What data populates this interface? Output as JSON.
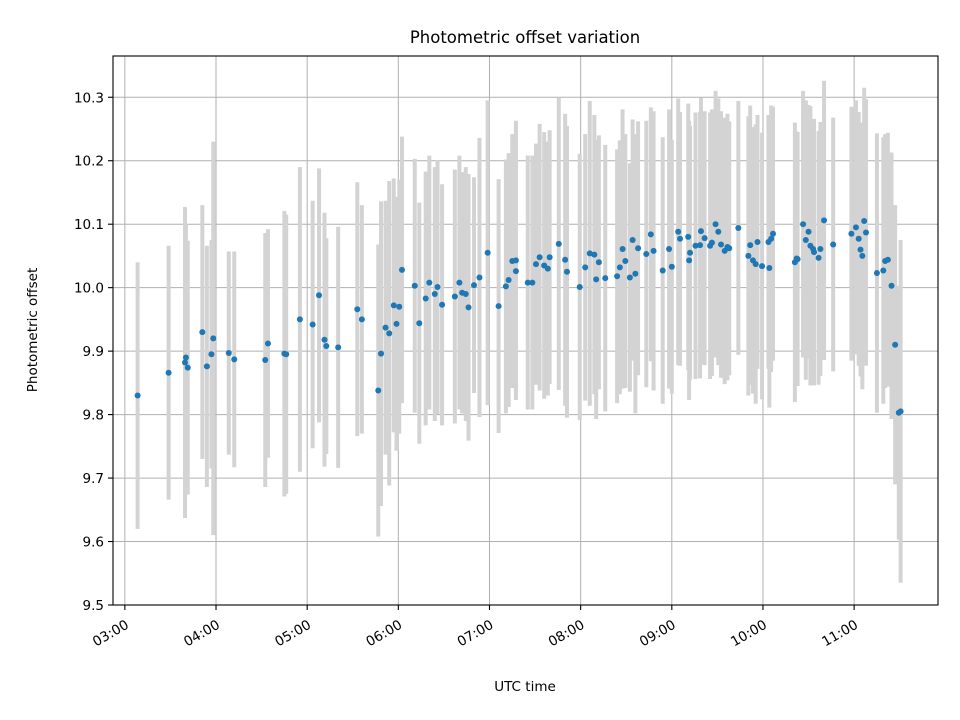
{
  "chart_data": {
    "type": "scatter",
    "title": "Photometric offset variation",
    "xlabel": "UTC time",
    "ylabel": "Photometric offset",
    "x_unit": "hours UTC",
    "xlim": [
      2.87,
      11.92
    ],
    "ylim": [
      9.5,
      10.365
    ],
    "x_ticks": [
      {
        "value": 3,
        "label": "03:00"
      },
      {
        "value": 4,
        "label": "04:00"
      },
      {
        "value": 5,
        "label": "05:00"
      },
      {
        "value": 6,
        "label": "06:00"
      },
      {
        "value": 7,
        "label": "07:00"
      },
      {
        "value": 8,
        "label": "08:00"
      },
      {
        "value": 9,
        "label": "09:00"
      },
      {
        "value": 10,
        "label": "10:00"
      },
      {
        "value": 11,
        "label": "11:00"
      }
    ],
    "y_ticks": [
      {
        "value": 9.5,
        "label": "9.5"
      },
      {
        "value": 9.6,
        "label": "9.6"
      },
      {
        "value": 9.7,
        "label": "9.7"
      },
      {
        "value": 9.8,
        "label": "9.8"
      },
      {
        "value": 9.9,
        "label": "9.9"
      },
      {
        "value": 10.0,
        "label": "10.0"
      },
      {
        "value": 10.1,
        "label": "10.1"
      },
      {
        "value": 10.2,
        "label": "10.2"
      },
      {
        "value": 10.3,
        "label": "10.3"
      }
    ],
    "grid": true,
    "legend": "none",
    "colors": {
      "points": "#1f77b4",
      "error_bars": "#d3d3d3"
    },
    "series": [
      {
        "points": [
          [
            3.14,
            9.83,
            0.21
          ],
          [
            3.48,
            9.866,
            0.2
          ],
          [
            3.66,
            9.882,
            0.245
          ],
          [
            3.67,
            9.89,
            0.21
          ],
          [
            3.69,
            9.874,
            0.2
          ],
          [
            3.85,
            9.93,
            0.2
          ],
          [
            3.9,
            9.876,
            0.19
          ],
          [
            3.95,
            9.895,
            0.18
          ],
          [
            3.97,
            9.92,
            0.31
          ],
          [
            4.14,
            9.897,
            0.16
          ],
          [
            4.2,
            9.887,
            0.17
          ],
          [
            4.54,
            9.886,
            0.2
          ],
          [
            4.57,
            9.912,
            0.18
          ],
          [
            4.75,
            9.896,
            0.225
          ],
          [
            4.77,
            9.895,
            0.22
          ],
          [
            4.92,
            9.95,
            0.24
          ],
          [
            5.06,
            9.942,
            0.195
          ],
          [
            5.13,
            9.988,
            0.2
          ],
          [
            5.19,
            9.918,
            0.2
          ],
          [
            5.21,
            9.908,
            0.17
          ],
          [
            5.34,
            9.906,
            0.19
          ],
          [
            5.55,
            9.966,
            0.2
          ],
          [
            5.6,
            9.95,
            0.18
          ],
          [
            5.78,
            9.838,
            0.23
          ],
          [
            5.81,
            9.896,
            0.24
          ],
          [
            5.86,
            9.937,
            0.2
          ],
          [
            5.9,
            9.928,
            0.24
          ],
          [
            5.95,
            9.972,
            0.2
          ],
          [
            5.98,
            9.943,
            0.2
          ],
          [
            6.01,
            9.97,
            0.2
          ],
          [
            6.04,
            10.028,
            0.21
          ],
          [
            6.18,
            10.003,
            0.2
          ],
          [
            6.23,
            9.944,
            0.19
          ],
          [
            6.3,
            9.983,
            0.2
          ],
          [
            6.34,
            10.008,
            0.2
          ],
          [
            6.4,
            9.99,
            0.2
          ],
          [
            6.43,
            10.001,
            0.2
          ],
          [
            6.48,
            9.973,
            0.19
          ],
          [
            6.62,
            9.986,
            0.2
          ],
          [
            6.67,
            10.008,
            0.2
          ],
          [
            6.7,
            9.992,
            0.19
          ],
          [
            6.74,
            9.99,
            0.2
          ],
          [
            6.77,
            9.969,
            0.21
          ],
          [
            6.83,
            10.004,
            0.17
          ],
          [
            6.89,
            10.016,
            0.22
          ],
          [
            6.98,
            10.055,
            0.24
          ],
          [
            7.1,
            9.971,
            0.2
          ],
          [
            7.18,
            10.002,
            0.2
          ],
          [
            7.21,
            10.012,
            0.2
          ],
          [
            7.25,
            10.042,
            0.2
          ],
          [
            7.29,
            10.026,
            0.2
          ],
          [
            7.29,
            10.043,
            0.22
          ],
          [
            7.42,
            10.008,
            0.2
          ],
          [
            7.47,
            10.008,
            0.2
          ],
          [
            7.51,
            10.037,
            0.19
          ],
          [
            7.55,
            10.048,
            0.21
          ],
          [
            7.6,
            10.035,
            0.21
          ],
          [
            7.64,
            10.03,
            0.2
          ],
          [
            7.66,
            10.048,
            0.2
          ],
          [
            7.76,
            10.069,
            0.23
          ],
          [
            7.83,
            10.044,
            0.23
          ],
          [
            7.85,
            10.025,
            0.23
          ],
          [
            7.99,
            10.001,
            0.21
          ],
          [
            8.05,
            10.032,
            0.21
          ],
          [
            8.1,
            10.054,
            0.24
          ],
          [
            8.15,
            10.052,
            0.22
          ],
          [
            8.17,
            10.013,
            0.22
          ],
          [
            8.2,
            10.04,
            0.2
          ],
          [
            8.27,
            10.015,
            0.21
          ],
          [
            8.4,
            10.018,
            0.2
          ],
          [
            8.43,
            10.032,
            0.2
          ],
          [
            8.46,
            10.061,
            0.22
          ],
          [
            8.49,
            10.042,
            0.2
          ],
          [
            8.54,
            10.016,
            0.18
          ],
          [
            8.57,
            10.075,
            0.19
          ],
          [
            8.6,
            10.022,
            0.22
          ],
          [
            8.63,
            10.062,
            0.2
          ],
          [
            8.72,
            10.053,
            0.21
          ],
          [
            8.77,
            10.084,
            0.2
          ],
          [
            8.8,
            10.058,
            0.22
          ],
          [
            8.9,
            10.027,
            0.21
          ],
          [
            8.97,
            10.061,
            0.22
          ],
          [
            9.0,
            10.033,
            0.2
          ],
          [
            9.07,
            10.088,
            0.21
          ],
          [
            9.09,
            10.077,
            0.2
          ],
          [
            9.18,
            10.08,
            0.21
          ],
          [
            9.19,
            10.043,
            0.22
          ],
          [
            9.2,
            10.055,
            0.2
          ],
          [
            9.26,
            10.066,
            0.21
          ],
          [
            9.31,
            10.067,
            0.21
          ],
          [
            9.32,
            10.089,
            0.21
          ],
          [
            9.36,
            10.078,
            0.2
          ],
          [
            9.42,
            10.066,
            0.21
          ],
          [
            9.44,
            10.071,
            0.21
          ],
          [
            9.48,
            10.1,
            0.21
          ],
          [
            9.51,
            10.088,
            0.21
          ],
          [
            9.54,
            10.068,
            0.21
          ],
          [
            9.58,
            10.058,
            0.21
          ],
          [
            9.61,
            10.064,
            0.21
          ],
          [
            9.63,
            10.062,
            0.2
          ],
          [
            9.73,
            10.094,
            0.2
          ],
          [
            9.84,
            10.05,
            0.22
          ],
          [
            9.86,
            10.067,
            0.22
          ],
          [
            9.89,
            10.043,
            0.21
          ],
          [
            9.92,
            10.037,
            0.22
          ],
          [
            9.94,
            10.072,
            0.2
          ],
          [
            9.99,
            10.034,
            0.21
          ],
          [
            10.06,
            10.072,
            0.2
          ],
          [
            10.07,
            10.031,
            0.22
          ],
          [
            10.09,
            10.077,
            0.21
          ],
          [
            10.11,
            10.085,
            0.2
          ],
          [
            10.35,
            10.04,
            0.22
          ],
          [
            10.37,
            10.046,
            0.2
          ],
          [
            10.38,
            10.045,
            0.2
          ],
          [
            10.44,
            10.1,
            0.21
          ],
          [
            10.47,
            10.075,
            0.22
          ],
          [
            10.5,
            10.088,
            0.2
          ],
          [
            10.52,
            10.066,
            0.22
          ],
          [
            10.55,
            10.061,
            0.2
          ],
          [
            10.56,
            10.056,
            0.21
          ],
          [
            10.61,
            10.047,
            0.2
          ],
          [
            10.63,
            10.061,
            0.2
          ],
          [
            10.67,
            10.106,
            0.22
          ],
          [
            10.77,
            10.068,
            0.2
          ],
          [
            10.97,
            10.085,
            0.2
          ],
          [
            11.02,
            10.095,
            0.2
          ],
          [
            11.05,
            10.077,
            0.2
          ],
          [
            11.07,
            10.06,
            0.2
          ],
          [
            11.09,
            10.05,
            0.21
          ],
          [
            11.11,
            10.105,
            0.21
          ],
          [
            11.13,
            10.087,
            0.21
          ],
          [
            11.25,
            10.023,
            0.22
          ],
          [
            11.32,
            10.027,
            0.21
          ],
          [
            11.34,
            10.042,
            0.2
          ],
          [
            11.37,
            10.044,
            0.2
          ],
          [
            11.41,
            10.003,
            0.21
          ],
          [
            11.45,
            9.91,
            0.22
          ],
          [
            11.49,
            9.803,
            0.2
          ],
          [
            11.51,
            9.805,
            0.27
          ]
        ]
      }
    ]
  }
}
